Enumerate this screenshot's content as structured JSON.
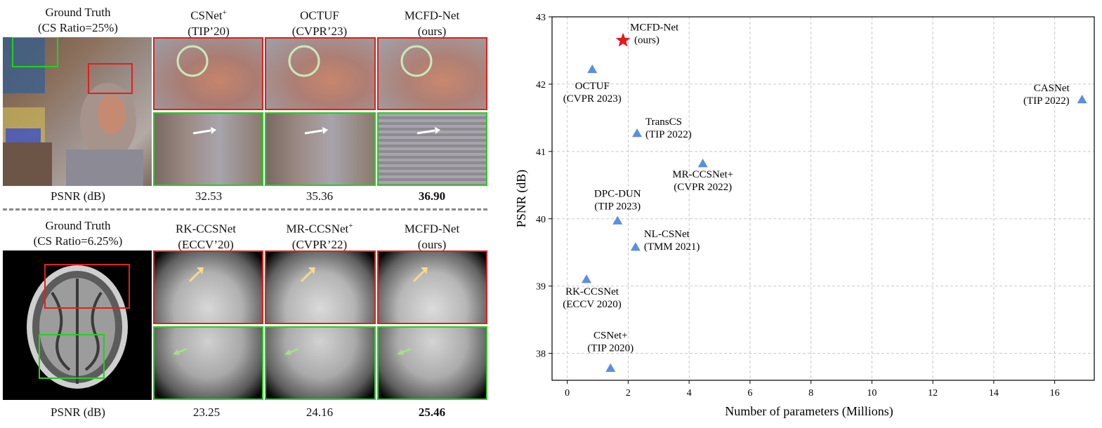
{
  "comparison": {
    "top": {
      "gt_title": "Ground Truth",
      "gt_ratio": "(CS Ratio=25%)",
      "methods": [
        {
          "name": "CSNet",
          "sup": "+",
          "venue": "(TIP’20)",
          "psnr": "32.53",
          "best": false
        },
        {
          "name": "OCTUF",
          "sup": "",
          "venue": "(CVPR’23)",
          "psnr": "35.36",
          "best": false
        },
        {
          "name": "MCFD-Net",
          "sup": "",
          "venue": "(ours)",
          "psnr": "36.90",
          "best": true
        }
      ],
      "psnr_label": "PSNR (dB)"
    },
    "bottom": {
      "gt_title": "Ground Truth",
      "gt_ratio": "(CS Ratio=6.25%)",
      "methods": [
        {
          "name": "RK-CCSNet",
          "sup": "",
          "venue": "(ECCV’20)",
          "psnr": "23.25",
          "best": false
        },
        {
          "name": "MR-CCSNet",
          "sup": "+",
          "venue": "(CVPR’22)",
          "psnr": "24.16",
          "best": false
        },
        {
          "name": "MCFD-Net",
          "sup": "",
          "venue": "(ours)",
          "psnr": "25.46",
          "best": true
        }
      ],
      "psnr_label": "PSNR (dB)"
    }
  },
  "chart_data": {
    "type": "scatter",
    "xlabel": "Number of parameters (Millions)",
    "ylabel": "PSNR (dB)",
    "xlim": [
      -0.5,
      17.3
    ],
    "ylim": [
      37.6,
      43
    ],
    "xticks": [
      0,
      2,
      4,
      6,
      8,
      10,
      12,
      14,
      16
    ],
    "yticks": [
      38,
      39,
      40,
      41,
      42,
      43
    ],
    "grid": true,
    "colors": {
      "triangle": "#5b8ee0",
      "star": "#e8171b"
    },
    "points": [
      {
        "label1": "MCFD-Net",
        "label2": "(ours)",
        "x": 1.83,
        "y": 42.65,
        "marker": "star"
      },
      {
        "label1": "OCTUF",
        "label2": "(CVPR 2023)",
        "x": 0.82,
        "y": 42.22,
        "marker": "triangle"
      },
      {
        "label1": "CASNet",
        "label2": "(TIP 2022)",
        "x": 16.9,
        "y": 41.77,
        "marker": "triangle"
      },
      {
        "label1": "TransCS",
        "label2": "(TIP 2022)",
        "x": 2.29,
        "y": 41.27,
        "marker": "triangle"
      },
      {
        "label1": "MR-CCSNet+",
        "label2": "(CVPR 2022)",
        "x": 4.45,
        "y": 40.82,
        "marker": "triangle"
      },
      {
        "label1": "DPC-DUN",
        "label2": "(TIP 2023)",
        "x": 1.65,
        "y": 39.97,
        "marker": "triangle"
      },
      {
        "label1": "NL-CSNet",
        "label2": "(TMM 2021)",
        "x": 2.24,
        "y": 39.58,
        "marker": "triangle"
      },
      {
        "label1": "RK-CCSNet",
        "label2": "(ECCV 2020)",
        "x": 0.63,
        "y": 39.1,
        "marker": "triangle"
      },
      {
        "label1": "CSNet+",
        "label2": "(TIP 2020)",
        "x": 1.42,
        "y": 37.78,
        "marker": "triangle"
      }
    ]
  }
}
